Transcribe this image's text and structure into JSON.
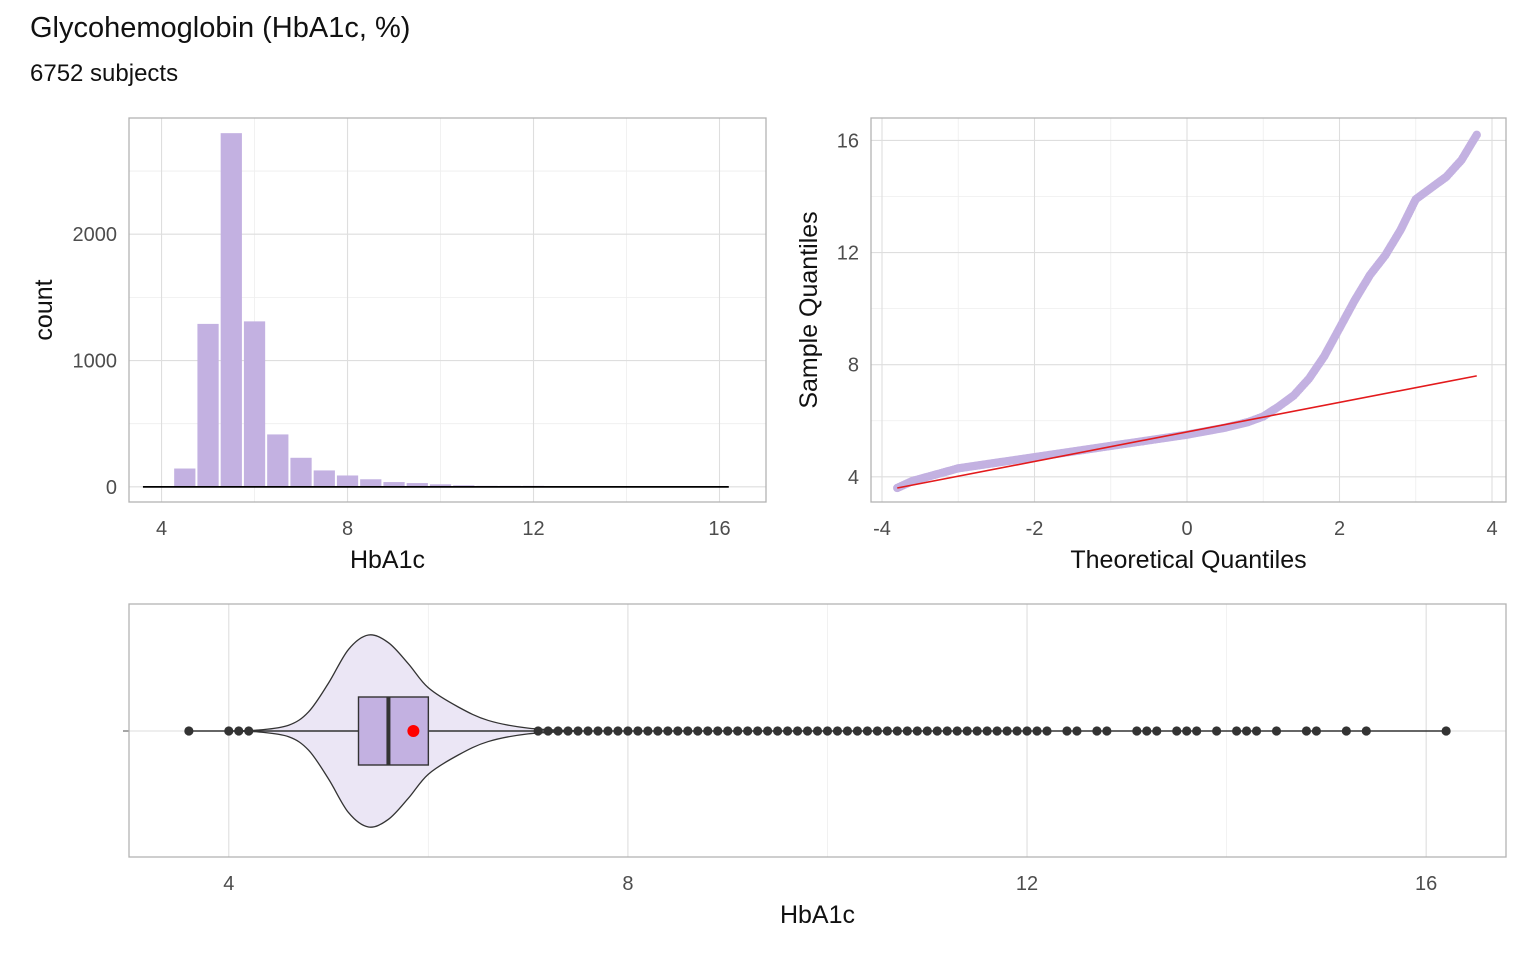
{
  "title": "Glycohemoglobin (HbA1c, %)",
  "subtitle": "6752 subjects",
  "colors": {
    "fill": "#c3b1e1",
    "violin_fill": "#ebe6f5",
    "qq_line": "#e31a1c",
    "mean_point": "#ff0000",
    "outlier": "#333333"
  },
  "chart_data": [
    {
      "type": "bar",
      "subtype": "histogram",
      "xlabel": "HbA1c",
      "ylabel": "count",
      "xlim": [
        3.3,
        17.0
      ],
      "ylim": [
        -120,
        2920
      ],
      "xticks": [
        4,
        8,
        12,
        16
      ],
      "yticks": [
        0,
        1000,
        2000
      ],
      "bin_width": 0.5,
      "bins_start": [
        4.25,
        4.75,
        5.25,
        5.75,
        6.25,
        6.75,
        7.25,
        7.75,
        8.25,
        8.75,
        9.25,
        9.75,
        10.25,
        10.75,
        11.25,
        11.75,
        12.25
      ],
      "values": [
        145,
        1290,
        2800,
        1310,
        415,
        230,
        130,
        90,
        60,
        38,
        30,
        20,
        12,
        8,
        8,
        8,
        5
      ],
      "baseline_range": [
        3.6,
        16.2
      ],
      "grid": true
    },
    {
      "type": "scatter",
      "subtype": "qq-plot",
      "xlabel": "Theoretical Quantiles",
      "ylabel": "Sample Quantiles",
      "xlim": [
        -4.0,
        4.0
      ],
      "ylim": [
        3.1,
        16.8
      ],
      "xticks": [
        -4,
        -2,
        0,
        2,
        4
      ],
      "yticks": [
        4,
        8,
        12,
        16
      ],
      "sample_curve": [
        [
          -3.8,
          3.6
        ],
        [
          -3.6,
          3.85
        ],
        [
          -3.4,
          4.0
        ],
        [
          -3.2,
          4.15
        ],
        [
          -3.0,
          4.3
        ],
        [
          -2.5,
          4.5
        ],
        [
          -2.0,
          4.7
        ],
        [
          -1.5,
          4.9
        ],
        [
          -1.0,
          5.1
        ],
        [
          -0.5,
          5.3
        ],
        [
          0.0,
          5.5
        ],
        [
          0.3,
          5.65
        ],
        [
          0.5,
          5.75
        ],
        [
          0.8,
          5.95
        ],
        [
          1.0,
          6.15
        ],
        [
          1.2,
          6.5
        ],
        [
          1.4,
          6.9
        ],
        [
          1.6,
          7.5
        ],
        [
          1.8,
          8.3
        ],
        [
          2.0,
          9.3
        ],
        [
          2.2,
          10.3
        ],
        [
          2.4,
          11.2
        ],
        [
          2.6,
          11.9
        ],
        [
          2.8,
          12.8
        ],
        [
          3.0,
          13.9
        ],
        [
          3.2,
          14.3
        ],
        [
          3.4,
          14.7
        ],
        [
          3.6,
          15.3
        ],
        [
          3.8,
          16.2
        ]
      ],
      "reference_line": [
        [
          -3.8,
          3.6
        ],
        [
          3.8,
          7.6
        ]
      ],
      "grid": true
    },
    {
      "type": "violin-boxplot",
      "xlabel": "HbA1c",
      "xlim": [
        3.0,
        16.8
      ],
      "xticks": [
        4,
        8,
        12,
        16
      ],
      "box": {
        "q1": 5.3,
        "median": 5.6,
        "q3": 6.0,
        "mean": 5.85
      },
      "whiskers": [
        4.3,
        7.0
      ],
      "density": [
        [
          4.0,
          0.0
        ],
        [
          4.3,
          0.01
        ],
        [
          4.6,
          0.06
        ],
        [
          4.8,
          0.2
        ],
        [
          5.0,
          0.5
        ],
        [
          5.2,
          0.85
        ],
        [
          5.4,
          1.0
        ],
        [
          5.6,
          0.92
        ],
        [
          5.8,
          0.7
        ],
        [
          6.0,
          0.45
        ],
        [
          6.3,
          0.25
        ],
        [
          6.6,
          0.11
        ],
        [
          7.0,
          0.03
        ],
        [
          7.5,
          0.0
        ]
      ],
      "outliers": [
        3.6,
        4.0,
        4.1,
        4.2,
        7.1,
        7.2,
        7.3,
        7.4,
        7.5,
        7.6,
        7.7,
        7.8,
        7.9,
        8.0,
        8.1,
        8.2,
        8.3,
        8.4,
        8.5,
        8.6,
        8.7,
        8.8,
        8.9,
        9.0,
        9.1,
        9.2,
        9.3,
        9.4,
        9.5,
        9.6,
        9.7,
        9.8,
        9.9,
        10.0,
        10.1,
        10.2,
        10.3,
        10.4,
        10.5,
        10.6,
        10.7,
        10.8,
        10.9,
        11.0,
        11.1,
        11.2,
        11.3,
        11.4,
        11.5,
        11.6,
        11.7,
        11.8,
        11.9,
        12.0,
        12.1,
        12.2,
        12.4,
        12.5,
        12.7,
        12.8,
        13.1,
        13.2,
        13.3,
        13.5,
        13.6,
        13.7,
        13.9,
        14.1,
        14.2,
        14.3,
        14.5,
        14.8,
        14.9,
        15.2,
        15.4,
        16.2
      ],
      "range_line": [
        3.6,
        16.2
      ],
      "grid": true
    }
  ]
}
